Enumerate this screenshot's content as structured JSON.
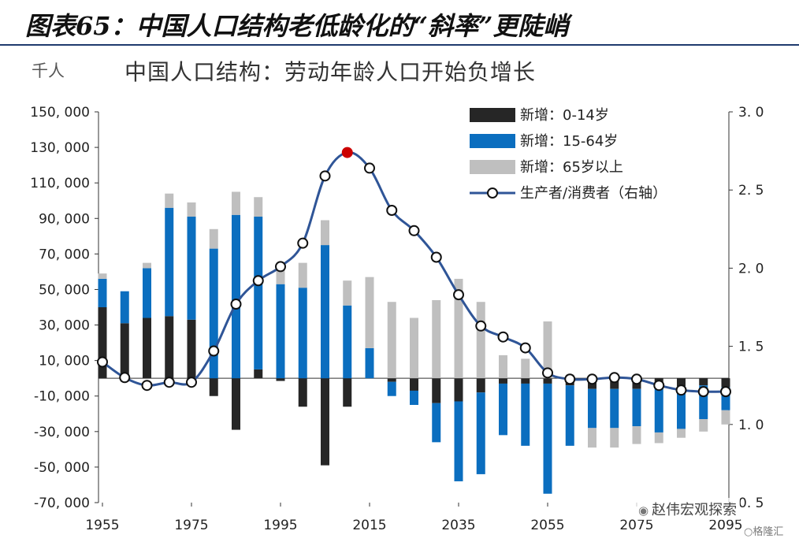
{
  "figure_title": "图表65：中国人口结构老低龄化的“斜率”更陡峭",
  "watermark": "赵伟宏观探索",
  "logo_text": "格隆汇",
  "chart_data": {
    "type": "bar",
    "title": "中国人口结构：劳动年龄人口开始负增长",
    "ylabel_left": "千人",
    "ylim_left": [
      -70000,
      150000
    ],
    "ylim_right": [
      0.5,
      3.0
    ],
    "y_ticks_left": [
      "150, 000",
      "130, 000",
      "110, 000",
      "90, 000",
      "70, 000",
      "50, 000",
      "30, 000",
      "10, 000",
      "-10, 000",
      "-30, 000",
      "-50, 000",
      "-70, 000"
    ],
    "y_ticks_right": [
      "3. 0",
      "2. 5",
      "2. 0",
      "1. 5",
      "1. 0",
      "0. 5"
    ],
    "x_tick_labels": [
      "1955",
      "1975",
      "1995",
      "2015",
      "2035",
      "2055",
      "2075",
      "2095"
    ],
    "legend_position": "top-right",
    "categories": [
      "1955",
      "1960",
      "1965",
      "1970",
      "1975",
      "1980",
      "1985",
      "1990",
      "1995",
      "2000",
      "2005",
      "2010",
      "2015",
      "2020",
      "2025",
      "2030",
      "2035",
      "2040",
      "2045",
      "2050",
      "2055",
      "2060",
      "2065",
      "2070",
      "2075",
      "2080",
      "2085",
      "2090",
      "2095"
    ],
    "series": [
      {
        "name": "新增：0-14岁",
        "type": "bar",
        "stack": "bars",
        "color": "#262626",
        "values": [
          40000,
          31000,
          34000,
          35000,
          33000,
          -10000,
          -29000,
          5000,
          -1500,
          -16000,
          -49000,
          -16000,
          0,
          -2000,
          -7000,
          -14000,
          -13000,
          -8000,
          -3000,
          -3000,
          -3000,
          -4000,
          -6000,
          -6000,
          -6000,
          -4500,
          -4500,
          -4000,
          -5000
        ]
      },
      {
        "name": "新增：15-64岁",
        "type": "bar",
        "stack": "bars",
        "color": "#0b6ebf",
        "values": [
          16000,
          18000,
          28000,
          61000,
          58000,
          73000,
          92000,
          86000,
          53000,
          51000,
          75000,
          41000,
          17000,
          -8000,
          -8000,
          -22000,
          -45000,
          -46000,
          -29000,
          -35000,
          -62000,
          -34000,
          -22000,
          -22000,
          -21000,
          -26000,
          -24000,
          -19000,
          -13000
        ]
      },
      {
        "name": "新增：65岁以上",
        "type": "bar",
        "stack": "bars",
        "color": "#bfbfbf",
        "values": [
          3000,
          -2000,
          3000,
          8000,
          8000,
          11000,
          13000,
          11000,
          12000,
          14000,
          14000,
          14000,
          40000,
          43000,
          34000,
          44000,
          56000,
          43000,
          13000,
          11000,
          32000,
          2000,
          -11000,
          -11000,
          -10000,
          -6000,
          -5000,
          -7000,
          -8000
        ]
      },
      {
        "name": "生产者/消费者（右轴）",
        "type": "line",
        "axis": "right",
        "color": "#2f5597",
        "values": [
          1.4,
          1.3,
          1.25,
          1.27,
          1.27,
          1.47,
          1.77,
          1.92,
          2.01,
          2.16,
          2.59,
          2.74,
          2.64,
          2.37,
          2.24,
          2.07,
          1.83,
          1.63,
          1.56,
          1.49,
          1.33,
          1.29,
          1.29,
          1.3,
          1.29,
          1.25,
          1.22,
          1.21,
          1.21
        ]
      }
    ],
    "highlight_point": {
      "category": "2010",
      "value": 2.74,
      "color": "#cc0000"
    }
  }
}
